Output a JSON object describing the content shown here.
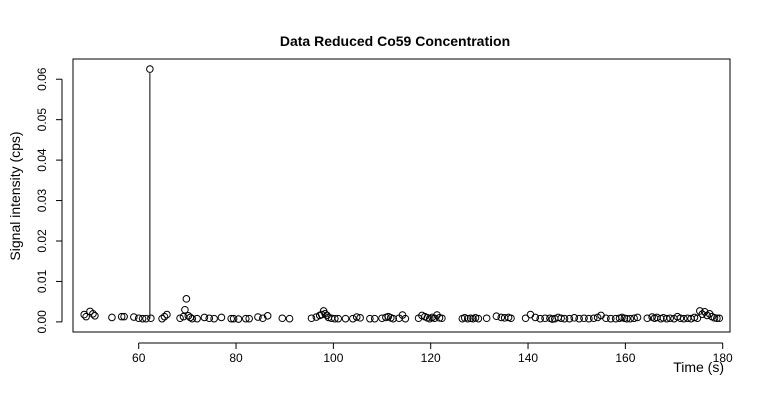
{
  "chart_data": {
    "type": "scatter",
    "title": "Data Reduced Co59 Concentration",
    "xlabel": "Time (s)",
    "ylabel": "Signal intensity (cps)",
    "xlim": [
      46.5,
      181.5
    ],
    "ylim": [
      -0.0025,
      0.065
    ],
    "xticks": [
      60,
      80,
      100,
      120,
      140,
      160,
      180
    ],
    "yticks": [
      0.0,
      0.01,
      0.02,
      0.03,
      0.04,
      0.05,
      0.06
    ],
    "ytick_labels": [
      "0.00",
      "0.01",
      "0.02",
      "0.03",
      "0.04",
      "0.05",
      "0.06"
    ],
    "grid": false,
    "legend": "none",
    "spike": {
      "x": 62.3,
      "y": 0.0625
    },
    "series": [
      {
        "marker": "open-circle",
        "points": [
          [
            48.8,
            0.0018
          ],
          [
            49.2,
            0.0013
          ],
          [
            50.0,
            0.0026
          ],
          [
            50.6,
            0.002
          ],
          [
            51.0,
            0.0015
          ],
          [
            54.5,
            0.0011
          ],
          [
            56.5,
            0.0013
          ],
          [
            57.0,
            0.0013
          ],
          [
            59.0,
            0.0012
          ],
          [
            60.0,
            0.0009
          ],
          [
            60.8,
            0.0008
          ],
          [
            61.5,
            0.0008
          ],
          [
            62.3,
            0.0625
          ],
          [
            62.5,
            0.0009
          ],
          [
            64.8,
            0.0008
          ],
          [
            65.3,
            0.0013
          ],
          [
            65.8,
            0.0018
          ],
          [
            68.5,
            0.0009
          ],
          [
            69.2,
            0.0013
          ],
          [
            69.5,
            0.003
          ],
          [
            69.8,
            0.0057
          ],
          [
            70.2,
            0.0015
          ],
          [
            70.6,
            0.0011
          ],
          [
            71.0,
            0.0008
          ],
          [
            72.0,
            0.0008
          ],
          [
            73.5,
            0.0011
          ],
          [
            74.5,
            0.0009
          ],
          [
            75.5,
            0.0008
          ],
          [
            77.0,
            0.0011
          ],
          [
            79.0,
            0.0008
          ],
          [
            79.5,
            0.0008
          ],
          [
            80.5,
            0.0007
          ],
          [
            82.0,
            0.0008
          ],
          [
            82.7,
            0.0008
          ],
          [
            84.5,
            0.0012
          ],
          [
            85.5,
            0.0009
          ],
          [
            86.5,
            0.0015
          ],
          [
            89.5,
            0.0009
          ],
          [
            91.0,
            0.0008
          ],
          [
            95.5,
            0.0009
          ],
          [
            96.5,
            0.0012
          ],
          [
            97.2,
            0.0016
          ],
          [
            97.6,
            0.0018
          ],
          [
            98.0,
            0.0027
          ],
          [
            98.3,
            0.002
          ],
          [
            98.7,
            0.0016
          ],
          [
            99.0,
            0.0011
          ],
          [
            99.6,
            0.0009
          ],
          [
            100.3,
            0.0008
          ],
          [
            101.0,
            0.0008
          ],
          [
            102.5,
            0.0008
          ],
          [
            104.0,
            0.0008
          ],
          [
            104.8,
            0.0012
          ],
          [
            105.5,
            0.001
          ],
          [
            107.5,
            0.0008
          ],
          [
            108.5,
            0.0008
          ],
          [
            110.0,
            0.0009
          ],
          [
            110.8,
            0.0011
          ],
          [
            111.3,
            0.0013
          ],
          [
            111.8,
            0.001
          ],
          [
            112.3,
            0.0008
          ],
          [
            113.5,
            0.0009
          ],
          [
            114.2,
            0.0017
          ],
          [
            114.8,
            0.0008
          ],
          [
            117.5,
            0.0009
          ],
          [
            118.2,
            0.0016
          ],
          [
            118.8,
            0.0013
          ],
          [
            119.3,
            0.001
          ],
          [
            119.8,
            0.0008
          ],
          [
            120.3,
            0.0011
          ],
          [
            120.8,
            0.0009
          ],
          [
            121.3,
            0.0017
          ],
          [
            121.8,
            0.001
          ],
          [
            122.3,
            0.0009
          ],
          [
            126.5,
            0.0008
          ],
          [
            127.0,
            0.001
          ],
          [
            127.6,
            0.0008
          ],
          [
            128.2,
            0.0009
          ],
          [
            128.7,
            0.0008
          ],
          [
            129.2,
            0.001
          ],
          [
            129.8,
            0.0008
          ],
          [
            131.5,
            0.0009
          ],
          [
            133.5,
            0.0014
          ],
          [
            134.5,
            0.0011
          ],
          [
            135.2,
            0.001
          ],
          [
            136.0,
            0.0011
          ],
          [
            136.5,
            0.0009
          ],
          [
            139.5,
            0.0009
          ],
          [
            140.5,
            0.0018
          ],
          [
            141.5,
            0.0011
          ],
          [
            142.5,
            0.0008
          ],
          [
            143.5,
            0.0009
          ],
          [
            144.5,
            0.0009
          ],
          [
            145.0,
            0.0007
          ],
          [
            145.5,
            0.0008
          ],
          [
            146.2,
            0.0011
          ],
          [
            146.8,
            0.0009
          ],
          [
            147.5,
            0.0008
          ],
          [
            148.5,
            0.0008
          ],
          [
            149.5,
            0.001
          ],
          [
            150.5,
            0.0008
          ],
          [
            151.5,
            0.0009
          ],
          [
            152.5,
            0.0008
          ],
          [
            153.5,
            0.0009
          ],
          [
            154.3,
            0.0011
          ],
          [
            155.0,
            0.0016
          ],
          [
            156.0,
            0.0009
          ],
          [
            157.0,
            0.0008
          ],
          [
            158.0,
            0.0008
          ],
          [
            158.8,
            0.0009
          ],
          [
            159.3,
            0.0011
          ],
          [
            159.8,
            0.0009
          ],
          [
            160.3,
            0.0008
          ],
          [
            161.0,
            0.0008
          ],
          [
            161.8,
            0.0009
          ],
          [
            162.5,
            0.0011
          ],
          [
            164.5,
            0.0009
          ],
          [
            165.5,
            0.0012
          ],
          [
            166.0,
            0.0009
          ],
          [
            166.5,
            0.0011
          ],
          [
            167.3,
            0.0008
          ],
          [
            167.8,
            0.001
          ],
          [
            168.5,
            0.0008
          ],
          [
            169.2,
            0.0009
          ],
          [
            170.0,
            0.0008
          ],
          [
            170.7,
            0.0013
          ],
          [
            171.3,
            0.0009
          ],
          [
            172.0,
            0.0008
          ],
          [
            172.8,
            0.0009
          ],
          [
            173.5,
            0.0008
          ],
          [
            174.2,
            0.0011
          ],
          [
            174.8,
            0.0009
          ],
          [
            175.3,
            0.0027
          ],
          [
            175.8,
            0.0019
          ],
          [
            176.3,
            0.0025
          ],
          [
            176.8,
            0.0016
          ],
          [
            177.3,
            0.002
          ],
          [
            177.8,
            0.0013
          ],
          [
            178.3,
            0.001
          ],
          [
            178.8,
            0.0009
          ],
          [
            179.3,
            0.0009
          ]
        ]
      }
    ]
  }
}
